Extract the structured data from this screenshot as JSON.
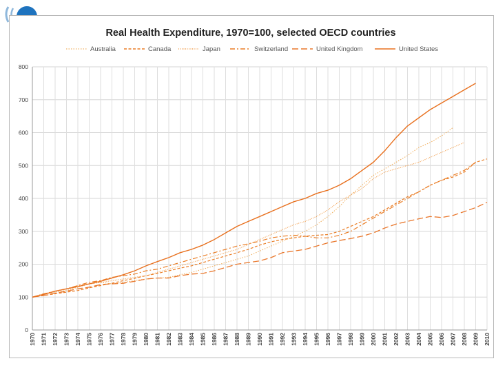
{
  "chart_data": {
    "type": "line",
    "title": "Real Health Expenditure, 1970=100,  selected OECD countries",
    "xlabel": "",
    "ylabel": "",
    "ylim": [
      0,
      800
    ],
    "yticks": [
      0,
      100,
      200,
      300,
      400,
      500,
      600,
      700,
      800
    ],
    "grid": true,
    "legend_position": "top",
    "x": [
      1970,
      1971,
      1972,
      1973,
      1974,
      1975,
      1976,
      1977,
      1978,
      1979,
      1980,
      1981,
      1982,
      1983,
      1984,
      1985,
      1986,
      1987,
      1988,
      1989,
      1990,
      1991,
      1992,
      1993,
      1994,
      1995,
      1996,
      1997,
      1998,
      1999,
      2000,
      2001,
      2002,
      2003,
      2004,
      2005,
      2006,
      2007,
      2008,
      2009,
      2010
    ],
    "series": [
      {
        "name": "Australia",
        "color": "#f0b060",
        "values": [
          100,
          110,
          115,
          120,
          130,
          140,
          145,
          140,
          145,
          150,
          155,
          158,
          160,
          168,
          175,
          185,
          195,
          205,
          215,
          225,
          240,
          255,
          270,
          285,
          300,
          320,
          345,
          375,
          410,
          440,
          470,
          490,
          510,
          530,
          555,
          570,
          590,
          615,
          null,
          null,
          null
        ]
      },
      {
        "name": "Canada",
        "color": "#ea7d25",
        "values": [
          100,
          105,
          110,
          115,
          120,
          128,
          135,
          142,
          150,
          157,
          165,
          172,
          180,
          188,
          195,
          205,
          215,
          225,
          235,
          245,
          258,
          268,
          275,
          280,
          285,
          288,
          290,
          300,
          315,
          330,
          345,
          365,
          385,
          405,
          420,
          440,
          455,
          465,
          480,
          510,
          520
        ]
      },
      {
        "name": "Japan",
        "color": "#f2a050",
        "values": [
          100,
          110,
          118,
          125,
          135,
          140,
          145,
          150,
          155,
          160,
          165,
          175,
          185,
          195,
          205,
          215,
          225,
          235,
          245,
          260,
          275,
          290,
          305,
          320,
          330,
          345,
          365,
          390,
          410,
          430,
          460,
          480,
          490,
          500,
          510,
          525,
          540,
          555,
          570,
          null,
          null
        ]
      },
      {
        "name": "Switzerland",
        "color": "#ea7d25",
        "values": [
          100,
          110,
          118,
          125,
          135,
          145,
          150,
          160,
          165,
          170,
          180,
          185,
          195,
          205,
          215,
          225,
          235,
          245,
          255,
          262,
          270,
          280,
          285,
          288,
          285,
          280,
          280,
          288,
          300,
          320,
          340,
          360,
          380,
          400,
          420,
          440,
          455,
          470,
          485,
          510,
          null
        ]
      },
      {
        "name": "United Kingdom",
        "color": "#e9762a",
        "values": [
          100,
          105,
          112,
          118,
          125,
          130,
          138,
          140,
          142,
          148,
          155,
          158,
          158,
          165,
          170,
          172,
          180,
          190,
          200,
          205,
          210,
          220,
          235,
          240,
          245,
          255,
          265,
          272,
          278,
          285,
          295,
          310,
          322,
          330,
          338,
          345,
          342,
          348,
          360,
          372,
          388
        ]
      },
      {
        "name": "United States",
        "color": "#e8701e",
        "values": [
          100,
          108,
          118,
          125,
          132,
          140,
          148,
          158,
          168,
          180,
          195,
          208,
          220,
          235,
          245,
          258,
          275,
          295,
          315,
          330,
          345,
          360,
          375,
          390,
          400,
          415,
          425,
          440,
          460,
          485,
          510,
          545,
          585,
          620,
          645,
          670,
          690,
          710,
          730,
          750,
          null
        ]
      }
    ]
  }
}
